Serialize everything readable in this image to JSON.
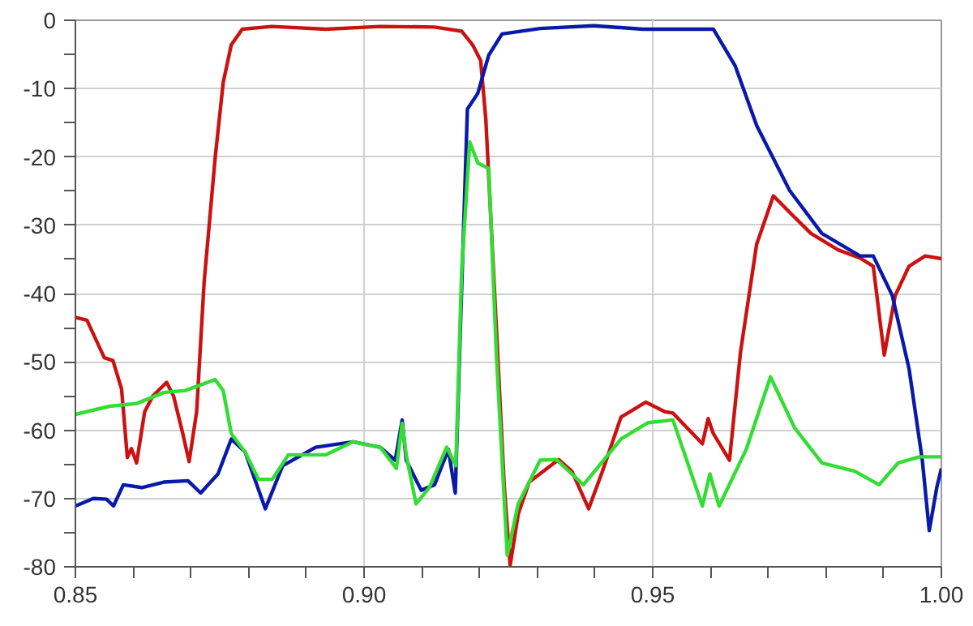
{
  "chart_data": {
    "type": "line",
    "xlim": [
      0.85,
      1.0
    ],
    "ylim": [
      -80,
      0
    ],
    "xticks": [
      0.85,
      {
        "value": 0.86,
        "label": null
      },
      {
        "value": 0.87,
        "label": null
      },
      {
        "value": 0.88,
        "label": null
      },
      {
        "value": 0.89,
        "label": null
      },
      {
        "value": 0.9,
        "label": "0.90"
      },
      {
        "value": 0.91,
        "label": null
      },
      {
        "value": 0.92,
        "label": null
      },
      {
        "value": 0.93,
        "label": null
      },
      {
        "value": 0.94,
        "label": null
      },
      0.95,
      {
        "value": 0.96,
        "label": null
      },
      {
        "value": 0.97,
        "label": null
      },
      {
        "value": 0.98,
        "label": null
      },
      {
        "value": 0.99,
        "label": null
      },
      {
        "value": 1.0,
        "label": "1.00"
      }
    ],
    "yticks": [
      0,
      {
        "value": -5,
        "label": null
      },
      -10,
      {
        "value": -15,
        "label": null
      },
      -20,
      {
        "value": -25,
        "label": null
      },
      -30,
      {
        "value": -35,
        "label": null
      },
      -40,
      {
        "value": -45,
        "label": null
      },
      -50,
      {
        "value": -55,
        "label": null
      },
      -60,
      {
        "value": -65,
        "label": null
      },
      -70,
      {
        "value": -75,
        "label": null
      },
      -80
    ],
    "grid": true,
    "line_style": "solid",
    "marker": "none",
    "series": [
      {
        "color": "#cc1111",
        "x": [
          0.85,
          0.852,
          0.855,
          0.8565,
          0.858,
          0.859,
          0.8597,
          0.8606,
          0.862,
          0.8634,
          0.8658,
          0.867,
          0.8686,
          0.8697,
          0.871,
          0.8723,
          0.8742,
          0.8756,
          0.877,
          0.8789,
          0.884,
          0.8934,
          0.9028,
          0.9122,
          0.9169,
          0.9188,
          0.9202,
          0.9211,
          0.9229,
          0.9243,
          0.9253,
          0.9267,
          0.9286,
          0.9337,
          0.936,
          0.9389,
          0.9413,
          0.9445,
          0.9488,
          0.9521,
          0.9535,
          0.9586,
          0.9596,
          0.9605,
          0.9633,
          0.9652,
          0.968,
          0.9709,
          0.9737,
          0.9774,
          0.9821,
          0.9859,
          0.9882,
          0.9901,
          0.992,
          0.9944,
          0.9972,
          1.0
        ],
        "values": [
          -43.5,
          -43.9,
          -49.4,
          -49.8,
          -54,
          -64,
          -62.7,
          -64.8,
          -57.3,
          -55,
          -53,
          -55,
          -60.5,
          -64.6,
          -57.3,
          -38.3,
          -20.2,
          -9.1,
          -3.6,
          -1.3,
          -0.9,
          -1.3,
          -0.9,
          -1,
          -1.6,
          -3.6,
          -5.9,
          -14.6,
          -44.7,
          -68.4,
          -79.8,
          -72.3,
          -67.6,
          -64.3,
          -66,
          -71.5,
          -66,
          -58.1,
          -55.9,
          -57.3,
          -57.5,
          -62,
          -58.3,
          -60.5,
          -64.4,
          -48.6,
          -32.8,
          -25.7,
          -28.1,
          -31.2,
          -33.6,
          -34.8,
          -36,
          -49,
          -40.3,
          -36,
          -34.5,
          -34.9
        ]
      },
      {
        "color": "#0a1aa8",
        "x": [
          0.85,
          0.8531,
          0.8554,
          0.8566,
          0.8583,
          0.8615,
          0.8653,
          0.8695,
          0.8717,
          0.8747,
          0.877,
          0.8794,
          0.8829,
          0.8859,
          0.8916,
          0.8981,
          0.9028,
          0.9054,
          0.9066,
          0.9073,
          0.9099,
          0.9122,
          0.9146,
          0.9158,
          0.9167,
          0.9179,
          0.9197,
          0.9216,
          0.9239,
          0.9305,
          0.9398,
          0.9483,
          0.9605,
          0.9643,
          0.968,
          0.9737,
          0.9793,
          0.9859,
          0.9882,
          0.9915,
          0.9944,
          0.9967,
          0.9979,
          0.9992,
          1.0
        ],
        "values": [
          -71.1,
          -70,
          -70.1,
          -71.1,
          -68,
          -68.4,
          -67.6,
          -67.4,
          -69.2,
          -66.4,
          -61.3,
          -63.2,
          -71.5,
          -65.2,
          -62.5,
          -61.7,
          -62.5,
          -64.4,
          -58.5,
          -64.4,
          -68.8,
          -68,
          -62.8,
          -69.2,
          -44.7,
          -13,
          -10.7,
          -5.1,
          -2,
          -1.2,
          -0.8,
          -1.3,
          -1.3,
          -6.7,
          -15.4,
          -24.9,
          -31.2,
          -34.5,
          -34.5,
          -40.3,
          -51,
          -64.4,
          -74.7,
          -68.4,
          -65.6
        ]
      },
      {
        "color": "#33dd33",
        "x": [
          0.85,
          0.8559,
          0.8606,
          0.8653,
          0.869,
          0.8742,
          0.8756,
          0.877,
          0.8794,
          0.8817,
          0.8841,
          0.8869,
          0.8934,
          0.8981,
          0.9028,
          0.9056,
          0.9066,
          0.9073,
          0.909,
          0.9113,
          0.9143,
          0.9159,
          0.9169,
          0.9183,
          0.9197,
          0.9216,
          0.9229,
          0.9248,
          0.9267,
          0.9305,
          0.9333,
          0.938,
          0.9445,
          0.9492,
          0.9535,
          0.9586,
          0.9599,
          0.9615,
          0.9662,
          0.9704,
          0.9746,
          0.9793,
          0.985,
          0.9892,
          0.9925,
          0.9962,
          1.0
        ],
        "values": [
          -57.7,
          -56.5,
          -56.1,
          -54.5,
          -54.2,
          -52.6,
          -54.2,
          -60.5,
          -63.2,
          -67.2,
          -67.2,
          -63.6,
          -63.6,
          -61.7,
          -62.5,
          -65.6,
          -59,
          -63.6,
          -70.8,
          -68.4,
          -62.5,
          -65.2,
          -36.8,
          -17.8,
          -20.9,
          -21.7,
          -48.6,
          -78.3,
          -70.8,
          -64.4,
          -64.3,
          -68,
          -61.3,
          -58.9,
          -58.5,
          -71.1,
          -66.4,
          -71.1,
          -62.8,
          -52.2,
          -59.7,
          -64.8,
          -66,
          -68,
          -64.8,
          -63.9,
          -63.9
        ]
      }
    ]
  }
}
